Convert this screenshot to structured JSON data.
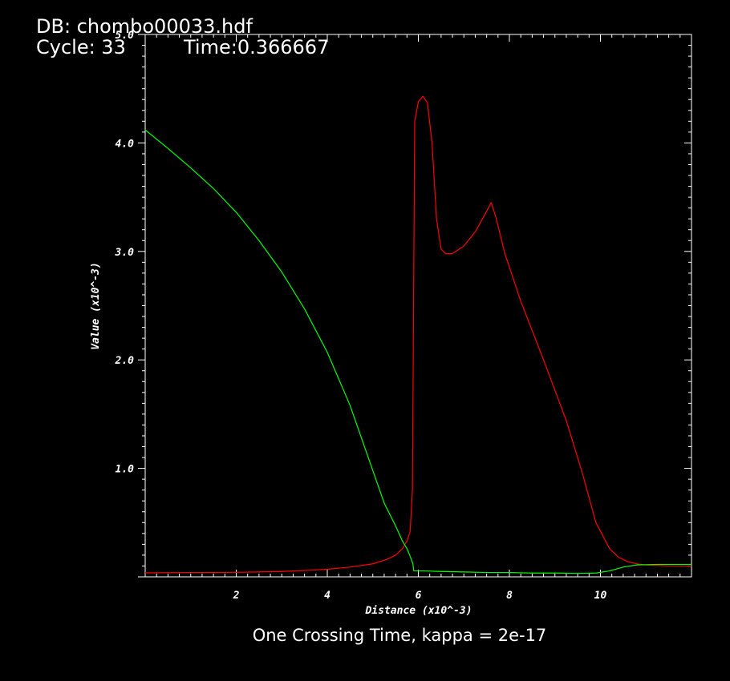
{
  "header": {
    "db_line": "DB: chombo00033.hdf",
    "cycle_line": "Cycle: 33",
    "time_line": "Time:0.366667"
  },
  "caption": "One Crossing Time, kappa = 2e-17",
  "chart_data": {
    "type": "line",
    "xlabel": "Distance (x10^-3)",
    "ylabel": "Value (x10^-3)",
    "xlim": [
      0,
      12
    ],
    "ylim": [
      0.0,
      5.0
    ],
    "x_ticks": [
      2,
      4,
      6,
      8,
      10
    ],
    "x_tick_labels": [
      "2",
      "4",
      "6",
      "8",
      "10"
    ],
    "y_ticks": [
      1.0,
      2.0,
      3.0,
      4.0,
      5.0
    ],
    "y_tick_labels": [
      "1.0",
      "2.0",
      "3.0",
      "4.0",
      "5.0"
    ],
    "grid": false,
    "axis_color": "#ffffff",
    "series": [
      {
        "color": "#ff0000",
        "x": [
          0,
          1,
          2,
          2.5,
          3,
          3.5,
          4,
          4.5,
          5,
          5.3,
          5.5,
          5.65,
          5.75,
          5.82,
          5.87,
          5.92,
          6.0,
          6.1,
          6.2,
          6.3,
          6.4,
          6.5,
          6.6,
          6.75,
          7.0,
          7.25,
          7.5,
          7.6,
          7.7,
          7.9,
          8.25,
          8.75,
          9.25,
          9.6,
          9.9,
          10.2,
          10.4,
          10.6,
          10.8,
          11.0,
          11.25,
          11.5,
          12.0
        ],
        "y": [
          0.037,
          0.04,
          0.042,
          0.045,
          0.05,
          0.058,
          0.07,
          0.09,
          0.12,
          0.16,
          0.2,
          0.26,
          0.33,
          0.42,
          0.8,
          4.2,
          4.38,
          4.43,
          4.37,
          4.0,
          3.3,
          3.02,
          2.98,
          2.98,
          3.05,
          3.18,
          3.37,
          3.45,
          3.32,
          2.98,
          2.54,
          2.0,
          1.44,
          0.96,
          0.5,
          0.26,
          0.18,
          0.14,
          0.12,
          0.11,
          0.105,
          0.102,
          0.1
        ]
      },
      {
        "color": "#00ff00",
        "x": [
          0,
          0.5,
          1,
          1.5,
          2,
          2.5,
          3,
          3.5,
          4,
          4.5,
          5,
          5.25,
          5.5,
          5.65,
          5.75,
          5.82,
          5.88,
          5.9,
          6.1,
          6.5,
          7.0,
          7.5,
          8.0,
          8.5,
          9.0,
          9.5,
          9.9,
          10.2,
          10.5,
          10.8,
          11.25,
          12.0
        ],
        "y": [
          4.12,
          3.95,
          3.77,
          3.58,
          3.36,
          3.1,
          2.81,
          2.47,
          2.07,
          1.58,
          0.98,
          0.68,
          0.47,
          0.33,
          0.26,
          0.19,
          0.12,
          0.055,
          0.055,
          0.05,
          0.045,
          0.04,
          0.04,
          0.035,
          0.035,
          0.032,
          0.035,
          0.055,
          0.09,
          0.11,
          0.115,
          0.115
        ]
      }
    ]
  }
}
